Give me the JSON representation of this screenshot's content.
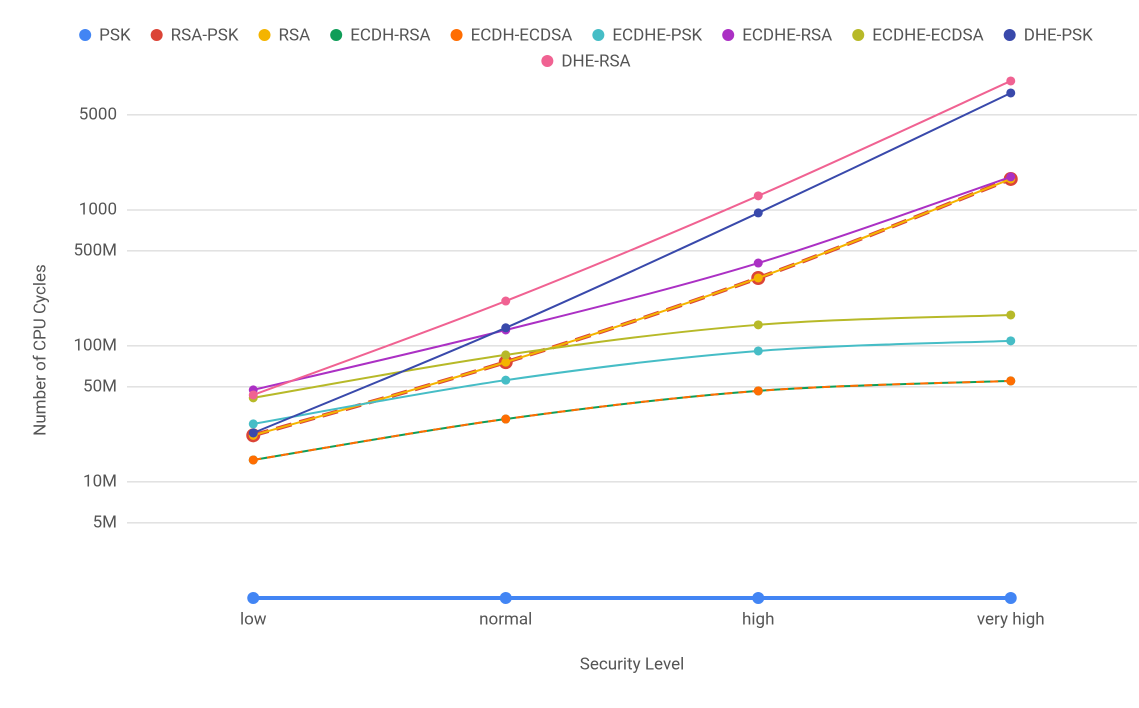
{
  "chart_data": {
    "type": "line",
    "smooth": true,
    "log_y": true,
    "grid": true,
    "x_label": "Security Level",
    "y_label": "Number of CPU Cycles",
    "categories": [
      "low",
      "normal",
      "high",
      "very high"
    ],
    "ylim": [
      1.4,
      10000
    ],
    "yticks": [
      {
        "value": 5,
        "label": "5M"
      },
      {
        "value": 10,
        "label": "10M"
      },
      {
        "value": 50,
        "label": "50M"
      },
      {
        "value": 100,
        "label": "100M"
      },
      {
        "value": 500,
        "label": "500M"
      },
      1000,
      5000
    ],
    "legend": "top",
    "series": [
      {
        "name": "PSK",
        "color": "#4285f4",
        "values": [
          1.4,
          1.4,
          1.4,
          1.4
        ]
      },
      {
        "name": "RSA-PSK",
        "color": "#db4437",
        "dashed": true,
        "values": [
          22,
          76,
          316,
          1690
        ]
      },
      {
        "name": "RSA",
        "color": "#f4b400",
        "values": [
          22,
          76,
          316,
          1690
        ]
      },
      {
        "name": "ECDH-RSA",
        "color": "#0f9d58",
        "values": [
          14.5,
          29,
          46.7,
          55.3
        ]
      },
      {
        "name": "ECDH-ECDSA",
        "color": "#ff6d01",
        "dashed": true,
        "values": [
          14.5,
          29,
          46.7,
          55.3
        ]
      },
      {
        "name": "ECDHE-PSK",
        "color": "#46bdc6",
        "values": [
          26.7,
          56,
          91.8,
          109
        ]
      },
      {
        "name": "ECDHE-RSA",
        "color": "#ab30c4",
        "values": [
          47.5,
          131,
          407,
          1750
        ]
      },
      {
        "name": "ECDHE-ECDSA",
        "color": "#b7b928",
        "values": [
          41.5,
          85.9,
          143,
          169
        ]
      },
      {
        "name": "DHE-PSK",
        "color": "#3949ab",
        "values": [
          22.9,
          136,
          951,
          7250
        ]
      },
      {
        "name": "DHE-RSA",
        "color": "#f06292",
        "values": [
          43.6,
          214,
          1270,
          8890
        ]
      }
    ]
  }
}
